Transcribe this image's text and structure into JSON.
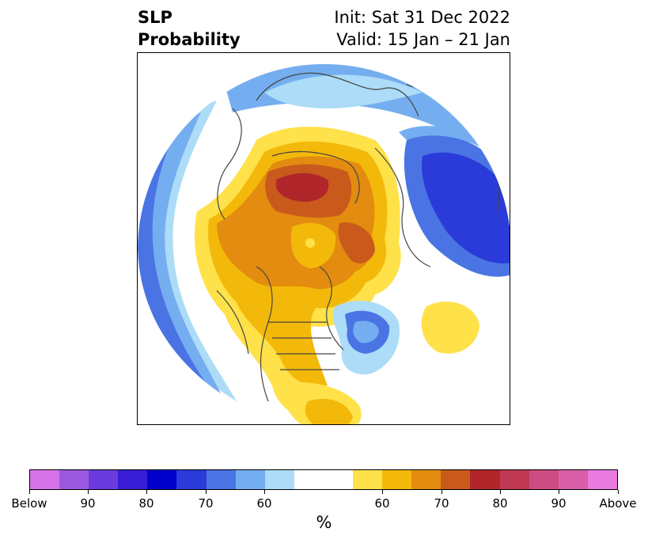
{
  "title": {
    "left_line1": "SLP",
    "left_line2": "Probability",
    "right_line1": "Init: Sat 31 Dec 2022",
    "right_line2": "Valid: 15 Jan – 21 Jan"
  },
  "map": {
    "projection": "polar-stereographic-north",
    "type": "probability-contour-map"
  },
  "colorbar": {
    "unit": "%",
    "colors": [
      "#d673e8",
      "#9b59e0",
      "#6a3bdc",
      "#3a1dd6",
      "#0000cd",
      "#2a3bd9",
      "#4a74e3",
      "#75aef0",
      "#acdcf7",
      "#ffffff",
      "#ffffff",
      "#ffe14a",
      "#f3b90a",
      "#e38c10",
      "#c95a1b",
      "#b0262a",
      "#bf3955",
      "#cc4b80",
      "#da5fa8",
      "#e87ae0"
    ],
    "tick_labels": [
      "Below",
      "90",
      "80",
      "70",
      "60",
      "60",
      "70",
      "80",
      "90",
      "Above"
    ]
  }
}
